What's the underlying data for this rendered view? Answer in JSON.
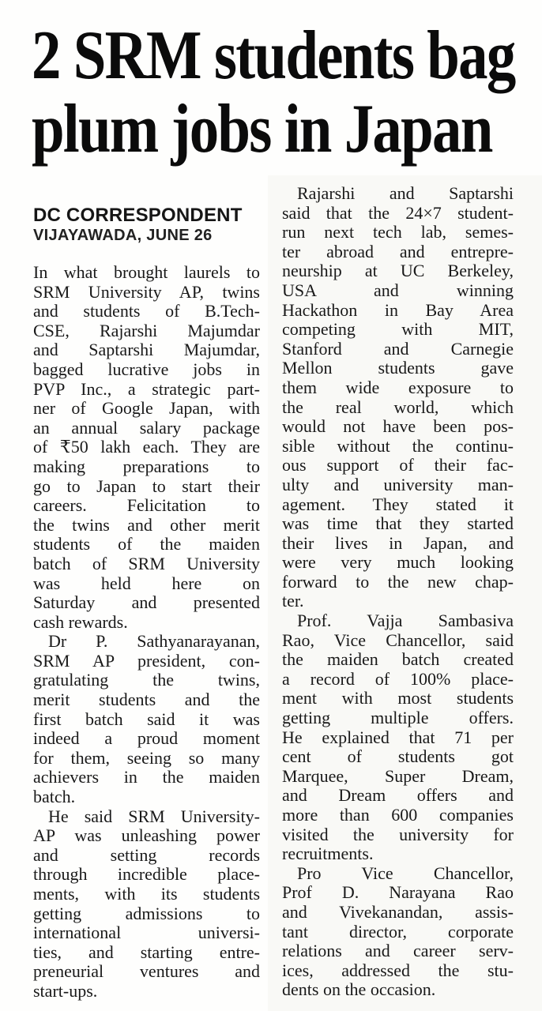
{
  "article": {
    "headline_lines": [
      "2 SRM students bag",
      "plum jobs in Japan"
    ],
    "byline": "DC CORRESPONDENT",
    "dateline": "VIJAYAWADA, JUNE 26",
    "columns": [
      {
        "paragraphs": [
          {
            "indent": false,
            "lines": [
              "In what brought laurels to",
              "SRM University AP, twins",
              "and students of B.Tech-",
              "CSE, Rajarshi Majumdar",
              "and Saptarshi Majumdar,",
              "bagged lucrative jobs in",
              "PVP Inc., a strategic part-",
              "ner of Google Japan, with",
              "an annual salary package",
              "of ₹50 lakh each. They are",
              "making preparations to",
              "go to Japan to start their",
              "careers. Felicitation to",
              "the twins and other merit",
              "students of the maiden",
              "batch of SRM University",
              "was held here on",
              "Saturday and presented",
              "cash rewards."
            ]
          },
          {
            "indent": true,
            "lines": [
              "Dr P. Sathyanarayanan,",
              "SRM AP president, con-",
              "gratulating the twins,",
              "merit students and the",
              "first batch said it was",
              "indeed a proud moment",
              "for them, seeing so many",
              "achievers in the maiden",
              "batch."
            ]
          },
          {
            "indent": true,
            "lines": [
              "He said SRM University-",
              "AP was unleashing power",
              "and setting records",
              "through incredible place-",
              "ments, with its students",
              "getting admissions to",
              "international universi-",
              "ties, and starting entre-",
              "preneurial ventures and",
              "start-ups."
            ]
          }
        ]
      },
      {
        "paragraphs": [
          {
            "indent": true,
            "lines": [
              "Rajarshi and Saptarshi",
              "said that the 24×7 student-",
              "run next tech lab, semes-",
              "ter abroad and entrepre-",
              "neurship at UC Berkeley,",
              "USA and winning",
              "Hackathon in Bay Area",
              "competing with MIT,",
              "Stanford and Carnegie",
              "Mellon students gave",
              "them wide exposure to",
              "the real world, which",
              "would not have been pos-",
              "sible without the continu-",
              "ous support of their fac-",
              "ulty and university man-",
              "agement. They stated it",
              "was time that they started",
              "their lives in Japan, and",
              "were very much looking",
              "forward to the new chap-",
              "ter."
            ]
          },
          {
            "indent": true,
            "lines": [
              "Prof. Vajja Sambasiva",
              "Rao, Vice Chancellor, said",
              "the maiden batch created",
              "a record of 100% place-",
              "ment with most students",
              "getting multiple offers.",
              "He explained that 71 per",
              "cent of students got",
              "Marquee, Super Dream,",
              "and Dream offers and",
              "more than 600 companies",
              "visited the university for",
              "recruitments."
            ]
          },
          {
            "indent": true,
            "lines": [
              "Pro Vice Chancellor,",
              "Prof D. Narayana Rao",
              "and Vivekanandan, assis-",
              "tant director, corporate",
              "relations and career serv-",
              "ices, addressed the stu-",
              "dents on the occasion."
            ]
          }
        ]
      }
    ]
  },
  "colors": {
    "ink": "#191919",
    "headline_ink": "#0b0b0b",
    "paper": "#fefefd",
    "scan_tint": "#f4f4f0"
  }
}
